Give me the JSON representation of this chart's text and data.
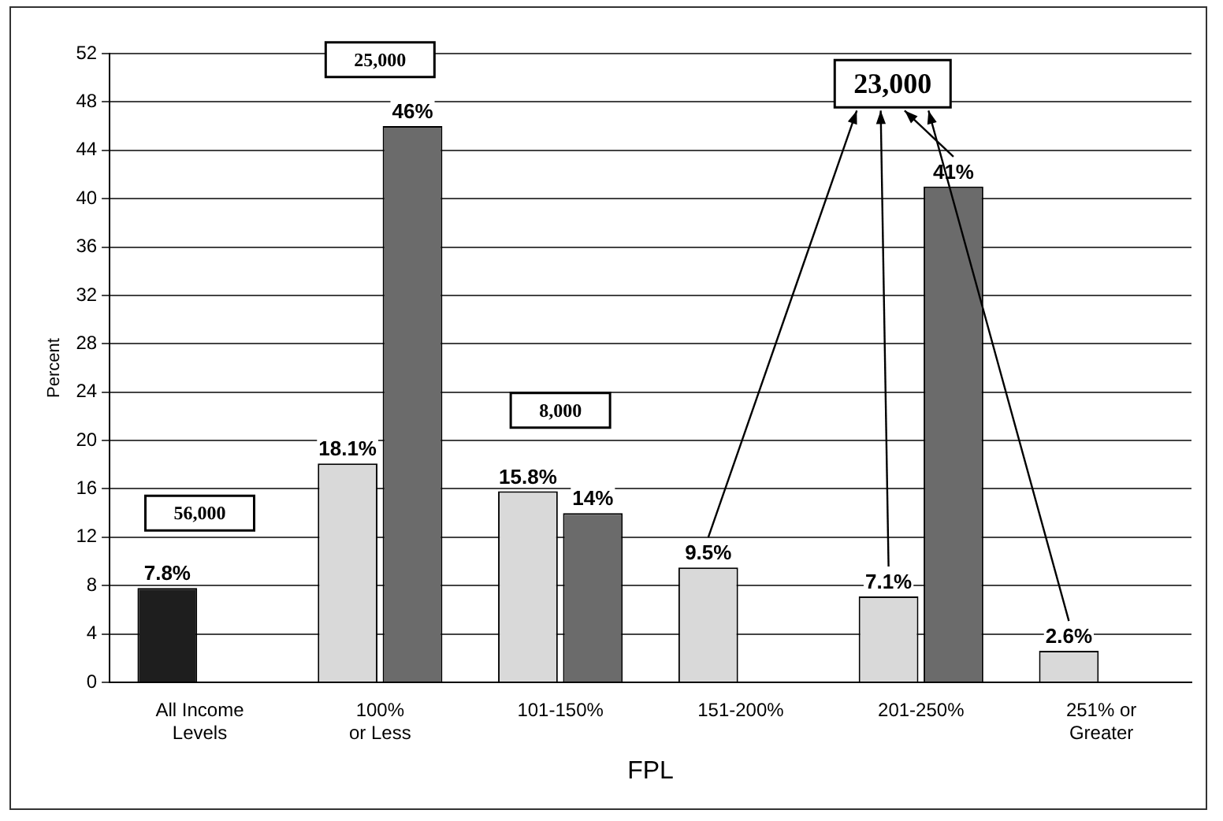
{
  "chart_data": {
    "type": "bar",
    "xlabel": "FPL",
    "ylabel": "Percent",
    "categories": [
      "All Income Levels",
      "100% or Less",
      "101-150%",
      "151-200%",
      "201-250%",
      "251% or Greater"
    ],
    "series": [
      {
        "colors": [
          "#1e1e1e",
          "#d9d9d9",
          "#d9d9d9",
          "#d9d9d9",
          "#d9d9d9",
          "#d9d9d9"
        ],
        "values": [
          7.8,
          18.1,
          15.8,
          9.5,
          7.1,
          2.6
        ],
        "value_labels": [
          "7.8%",
          "18.1%",
          "15.8%",
          "9.5%",
          "7.1%",
          "2.6%"
        ]
      },
      {
        "color": "#6b6b6b",
        "values": [
          null,
          46,
          14,
          null,
          41,
          null
        ],
        "value_labels": [
          null,
          "46%",
          "14%",
          null,
          "41%",
          null
        ]
      }
    ],
    "ylim": [
      0,
      52
    ],
    "yticks": [
      0,
      4,
      8,
      12,
      16,
      20,
      24,
      28,
      32,
      36,
      40,
      44,
      48,
      52
    ],
    "grid": "y",
    "legend": false,
    "annotations": [
      "56,000",
      "25,000",
      "8,000",
      "23,000"
    ]
  }
}
